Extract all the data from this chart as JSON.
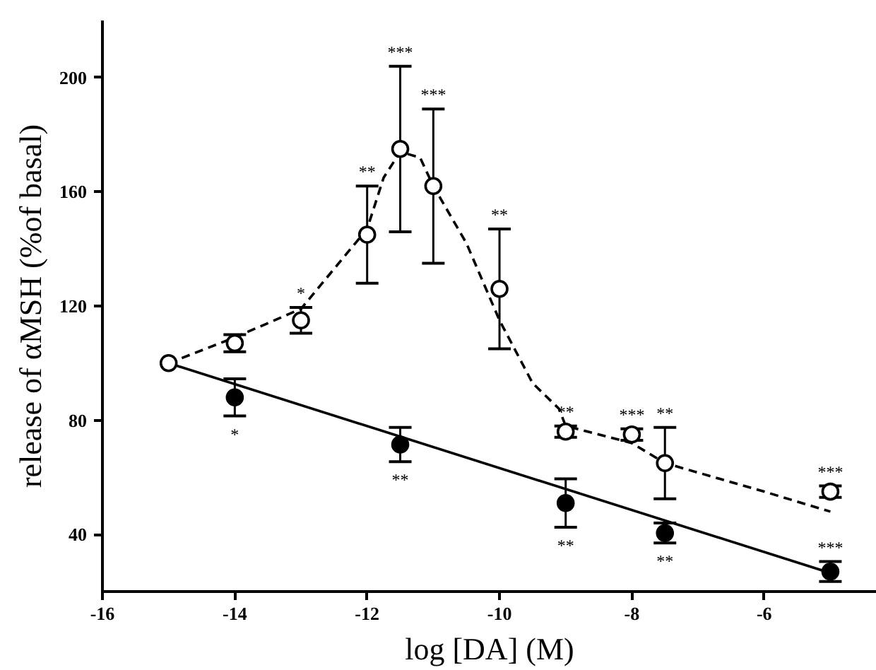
{
  "chart_data": {
    "type": "scatter",
    "xlabel": "log [DA] (M)",
    "ylabel": "release of αMSH (%of basal)",
    "xlim": [
      -16,
      -4.3
    ],
    "ylim": [
      20,
      220
    ],
    "xticks": [
      -16,
      -14,
      -12,
      -10,
      -8,
      -6
    ],
    "yticks": [
      40,
      80,
      120,
      160,
      200
    ],
    "grid": false,
    "series": [
      {
        "type": "line",
        "color": "#000000",
        "marker": "none",
        "line_style": "dashed",
        "x": [
          -15,
          -14,
          -13,
          -12,
          -11.75,
          -11.5,
          -11.2,
          -11,
          -10.5,
          -10,
          -9.5,
          -9.1,
          -9,
          -8,
          -7.5,
          -6,
          -5
        ],
        "values": [
          100,
          109,
          119,
          147,
          165,
          174,
          172,
          162,
          142,
          115,
          93,
          84,
          78,
          72,
          65,
          55,
          48
        ]
      },
      {
        "type": "line",
        "color": "#000000",
        "marker": "none",
        "line_style": "solid",
        "x": [
          -15,
          -5
        ],
        "values": [
          100,
          26.5
        ]
      },
      {
        "color": "#ffffff",
        "marker": "circle",
        "x": [
          -15,
          -14,
          -13,
          -12,
          -11.5,
          -11,
          -10,
          -9,
          -8,
          -7.5,
          -5
        ],
        "values": [
          100,
          107,
          115,
          145,
          175,
          162,
          126,
          76,
          75,
          65,
          55
        ],
        "errors": [
          null,
          3,
          4.5,
          17,
          29,
          27,
          21,
          2,
          2,
          12.5,
          2
        ]
      },
      {
        "color": "#000000",
        "marker": "circle",
        "x": [
          -14,
          -11.5,
          -9,
          -7.5,
          -5
        ],
        "values": [
          88,
          71.5,
          51,
          40.5,
          27
        ],
        "errors": [
          6.5,
          6,
          8.5,
          3.5,
          3.5
        ]
      }
    ],
    "annotations": [
      {
        "text": "*",
        "x": -14,
        "y": 88
      },
      {
        "text": "*",
        "x": -13,
        "y": 115
      },
      {
        "text": "**",
        "x": -12,
        "y": 162
      },
      {
        "text": "***",
        "x": -11.5,
        "y": 204
      },
      {
        "text": "***",
        "x": -11,
        "y": 189
      },
      {
        "text": "**",
        "x": -10,
        "y": 147
      },
      {
        "text": "**",
        "x": -9,
        "y": 76
      },
      {
        "text": "***",
        "x": -8,
        "y": 75
      },
      {
        "text": "**",
        "x": -7.5,
        "y": 65
      },
      {
        "text": "***",
        "x": -5,
        "y": 55
      },
      {
        "text": "**",
        "x": -11.5,
        "y": 71.5
      },
      {
        "text": "**",
        "x": -9,
        "y": 51
      },
      {
        "text": "**",
        "x": -7.5,
        "y": 40.5
      },
      {
        "text": "***",
        "x": -5,
        "y": 27
      }
    ]
  }
}
